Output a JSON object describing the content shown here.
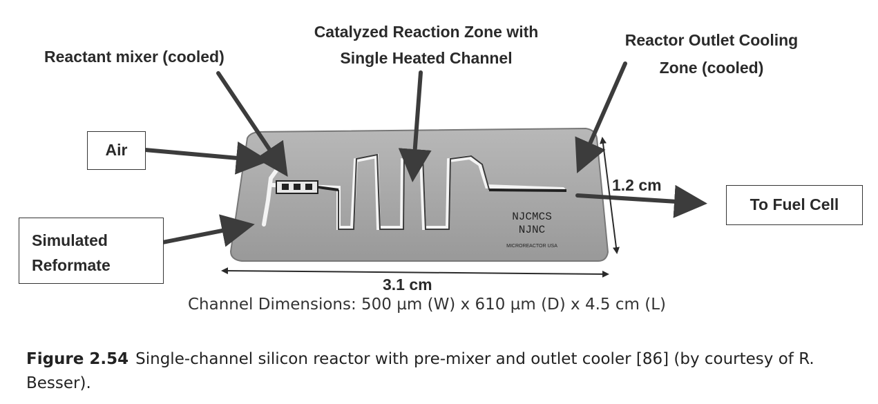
{
  "figure": {
    "labels": {
      "reactant_mixer": "Reactant mixer (cooled)",
      "reaction_zone_line1": "Catalyzed Reaction Zone with",
      "reaction_zone_line2": "Single Heated Channel",
      "outlet_cooling_line1": "Reactor Outlet Cooling",
      "outlet_cooling_line2": "Zone (cooled)",
      "air": "Air",
      "simulated_line1": "Simulated",
      "simulated_line2": "Reformate",
      "to_fuel_cell": "To Fuel Cell",
      "height_dim": "1.2 cm",
      "width_dim": "3.1 cm",
      "chip_text_line1": "NJCMCS",
      "chip_text_line2": "NJNC",
      "chip_text_line3": "MICROREACTOR USA",
      "channel_dimensions": "Channel Dimensions: 500 µm (W) x 610 µm (D) x 4.5 cm (L)"
    },
    "colors": {
      "chip": "#a9a9a9",
      "arrow": "#3c3c3c",
      "channel": "#f4f4f4"
    }
  },
  "caption": {
    "number": "Figure 2.54",
    "text": "Single-channel silicon reactor with pre-mixer and outlet cooler [86] (by courtesy of R. Besser)."
  }
}
